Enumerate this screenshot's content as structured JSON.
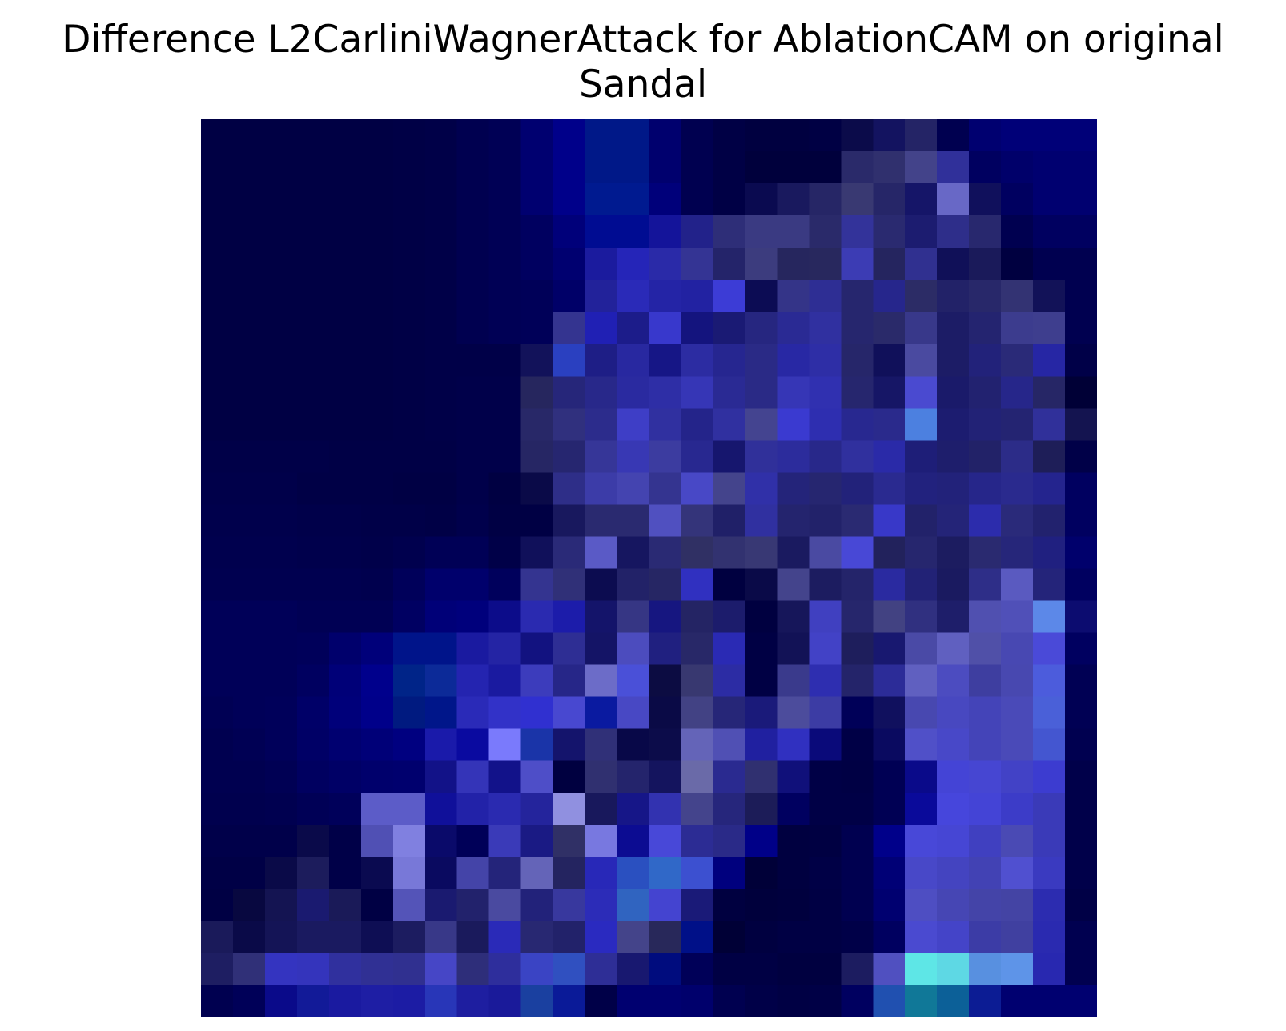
{
  "figure": {
    "title_line1": "Difference L2CarliniWagnerAttack for AblationCAM on original",
    "title_line2": "Sandal"
  },
  "chart_data": {
    "type": "heatmap",
    "axes_visible": false,
    "grid": false,
    "colors": {
      "background": "#ffffff",
      "title": "#000000"
    },
    "rows": 28,
    "cols": 28,
    "matrix": [
      [
        "#000044",
        "#000044",
        "#000044",
        "#000044",
        "#000044",
        "#000044",
        "#000046",
        "#000048",
        "#000050",
        "#000055",
        "#000070",
        "#00008a",
        "#001888",
        "#001888",
        "#00006e",
        "#000050",
        "#000045",
        "#000040",
        "#000040",
        "#000044",
        "#0b0b4a",
        "#131360",
        "#242466",
        "#000050",
        "#000070",
        "#000078",
        "#000078",
        "#000078"
      ],
      [
        "#000044",
        "#000044",
        "#000044",
        "#000044",
        "#000044",
        "#000044",
        "#000046",
        "#000048",
        "#000050",
        "#000055",
        "#000070",
        "#00008a",
        "#001888",
        "#001888",
        "#00006e",
        "#000050",
        "#000045",
        "#00003c",
        "#00003c",
        "#00003c",
        "#2a2a6a",
        "#30306e",
        "#43438a",
        "#30309a",
        "#000060",
        "#00006a",
        "#000070",
        "#000070"
      ],
      [
        "#000044",
        "#000044",
        "#000044",
        "#000044",
        "#000044",
        "#000044",
        "#000046",
        "#000048",
        "#000050",
        "#000055",
        "#000070",
        "#00008a",
        "#001a90",
        "#001a90",
        "#00007a",
        "#000050",
        "#000045",
        "#0a0a50",
        "#19195e",
        "#262666",
        "#393972",
        "#262668",
        "#151568",
        "#6868c6",
        "#10105c",
        "#000060",
        "#000070",
        "#000070"
      ],
      [
        "#000044",
        "#000044",
        "#000044",
        "#000044",
        "#000044",
        "#000044",
        "#000046",
        "#000048",
        "#000050",
        "#000055",
        "#000060",
        "#00007a",
        "#000c92",
        "#000c92",
        "#14149a",
        "#22228a",
        "#2e2e78",
        "#3a3a82",
        "#3a3a82",
        "#2a2a6a",
        "#33339a",
        "#2a2a70",
        "#1c1c70",
        "#2e2e8a",
        "#28286e",
        "#000050",
        "#000060",
        "#000060"
      ],
      [
        "#000044",
        "#000044",
        "#000044",
        "#000044",
        "#000044",
        "#000044",
        "#000046",
        "#000048",
        "#000050",
        "#000055",
        "#000060",
        "#000070",
        "#1b1b9e",
        "#2525b8",
        "#2a2aa8",
        "#343494",
        "#24246a",
        "#3c3c7e",
        "#26265e",
        "#28285e",
        "#3c3cb4",
        "#25255f",
        "#303090",
        "#101058",
        "#1a1a5a",
        "#000040",
        "#000050",
        "#000050"
      ],
      [
        "#000044",
        "#000044",
        "#000044",
        "#000044",
        "#000044",
        "#000044",
        "#000046",
        "#000048",
        "#000050",
        "#000055",
        "#000058",
        "#000068",
        "#22229a",
        "#2a2ab8",
        "#2424a6",
        "#2222a2",
        "#3c3cd6",
        "#0c0c54",
        "#343488",
        "#2e2e94",
        "#26266e",
        "#26268c",
        "#2c2c66",
        "#222268",
        "#28286a",
        "#333373",
        "#121258",
        "#000050"
      ],
      [
        "#000044",
        "#000044",
        "#000044",
        "#000044",
        "#000044",
        "#000044",
        "#000046",
        "#000048",
        "#000050",
        "#000055",
        "#000058",
        "#343490",
        "#2020b4",
        "#1c1c8a",
        "#3838cc",
        "#14147e",
        "#1a1a74",
        "#262680",
        "#2a2a94",
        "#3030a0",
        "#26266e",
        "#2a2a6a",
        "#38388a",
        "#1c1c66",
        "#242470",
        "#3c3c8e",
        "#3e3e8e",
        "#000050"
      ],
      [
        "#000044",
        "#000044",
        "#000044",
        "#000044",
        "#000044",
        "#000044",
        "#000046",
        "#000048",
        "#000048",
        "#000048",
        "#12125a",
        "#2a40c0",
        "#1e1e86",
        "#2828a0",
        "#161686",
        "#2c2ca2",
        "#262690",
        "#2a2a86",
        "#2828a4",
        "#2e2ea6",
        "#26266a",
        "#10105a",
        "#4a4aa0",
        "#1c1c66",
        "#22227a",
        "#2a2a78",
        "#2626a4",
        "#000048"
      ],
      [
        "#000044",
        "#000044",
        "#000044",
        "#000044",
        "#000044",
        "#000044",
        "#000046",
        "#000048",
        "#00004a",
        "#00004a",
        "#26265e",
        "#26267a",
        "#28288a",
        "#2a2aa0",
        "#2e2ea6",
        "#3636b6",
        "#2a2a94",
        "#2a2a86",
        "#3636b6",
        "#3030b0",
        "#26266e",
        "#161666",
        "#4a4ad0",
        "#1a1a6a",
        "#222270",
        "#26268a",
        "#262666",
        "#000036"
      ],
      [
        "#000044",
        "#000044",
        "#000044",
        "#000044",
        "#000044",
        "#000044",
        "#000046",
        "#000048",
        "#00004a",
        "#00004a",
        "#282868",
        "#30307e",
        "#2c2c8c",
        "#3e3ec6",
        "#3030a0",
        "#24248a",
        "#3030a0",
        "#444490",
        "#3a3ad0",
        "#2e2eb0",
        "#282890",
        "#2a2a8c",
        "#4c80e0",
        "#1c1c70",
        "#222276",
        "#242472",
        "#30309a",
        "#141450"
      ],
      [
        "#000048",
        "#000048",
        "#000048",
        "#000048",
        "#000046",
        "#000046",
        "#000046",
        "#000046",
        "#00004a",
        "#00004a",
        "#262664",
        "#262670",
        "#363698",
        "#3838b4",
        "#3c3ca0",
        "#282890",
        "#16166e",
        "#30309a",
        "#2c2c9c",
        "#28288a",
        "#30309e",
        "#2a2aa8",
        "#1e1e78",
        "#1e1e6c",
        "#222268",
        "#2c2c88",
        "#1e1e58",
        "#000048"
      ],
      [
        "#00004a",
        "#00004a",
        "#00004a",
        "#000046",
        "#000046",
        "#000046",
        "#000044",
        "#000044",
        "#00004a",
        "#000042",
        "#0a0a48",
        "#2e2e88",
        "#3c3ca8",
        "#4444b0",
        "#343490",
        "#4848c6",
        "#44448c",
        "#3030a8",
        "#24247a",
        "#262670",
        "#22227a",
        "#2a2a90",
        "#22227e",
        "#22227a",
        "#26268a",
        "#2a2a8e",
        "#24248e",
        "#000060"
      ],
      [
        "#00004c",
        "#00004c",
        "#00004c",
        "#00004a",
        "#00004a",
        "#000048",
        "#000048",
        "#000046",
        "#00004c",
        "#000044",
        "#000044",
        "#18185e",
        "#2a2a70",
        "#2a2a70",
        "#5050c0",
        "#34347a",
        "#202068",
        "#3030a0",
        "#24246e",
        "#22226a",
        "#2a2a72",
        "#3838c8",
        "#22226a",
        "#242478",
        "#2c2cac",
        "#2a2a7a",
        "#22226e",
        "#000060"
      ],
      [
        "#00004e",
        "#00004e",
        "#00004e",
        "#00004c",
        "#00004c",
        "#00004a",
        "#00004e",
        "#000056",
        "#000056",
        "#000048",
        "#10105a",
        "#2a2a78",
        "#5a5ac6",
        "#161660",
        "#2a2a74",
        "#303064",
        "#323270",
        "#383874",
        "#1a1a60",
        "#4a4aa2",
        "#4848d6",
        "#22225c",
        "#26266e",
        "#1c1c60",
        "#2a2a70",
        "#26267a",
        "#202080",
        "#00006c"
      ],
      [
        "#000050",
        "#000050",
        "#000050",
        "#000050",
        "#000050",
        "#00004e",
        "#00005a",
        "#00006c",
        "#00006c",
        "#00005c",
        "#343490",
        "#303078",
        "#0c0c50",
        "#222268",
        "#262664",
        "#3030c0",
        "#000040",
        "#0a0a48",
        "#44448c",
        "#1c1c60",
        "#24246a",
        "#2a2aa0",
        "#222276",
        "#1a1a60",
        "#2e2e88",
        "#5a5ac0",
        "#24247a",
        "#000060"
      ],
      [
        "#000058",
        "#000058",
        "#000058",
        "#000054",
        "#000054",
        "#000054",
        "#000062",
        "#000078",
        "#00007c",
        "#0c0c8a",
        "#2a2ab0",
        "#1c1caa",
        "#14146a",
        "#363684",
        "#161680",
        "#242464",
        "#1c1c6c",
        "#000040",
        "#16165a",
        "#4040c0",
        "#26266c",
        "#424282",
        "#303080",
        "#1e1e6a",
        "#5050b0",
        "#5050b8",
        "#5c88e8",
        "#0c0c70"
      ],
      [
        "#000058",
        "#000058",
        "#000058",
        "#00005a",
        "#00006c",
        "#00007a",
        "#00148a",
        "#00148a",
        "#1a1aa0",
        "#2424a4",
        "#121280",
        "#2e2e94",
        "#141466",
        "#4c4cbe",
        "#202080",
        "#282868",
        "#2a2ab4",
        "#000044",
        "#121256",
        "#4242c6",
        "#1e1e5c",
        "#181870",
        "#4a4aa6",
        "#6060c0",
        "#5050a8",
        "#4848b2",
        "#4a4ad8",
        "#000060"
      ],
      [
        "#000058",
        "#000058",
        "#000058",
        "#000060",
        "#000078",
        "#00008c",
        "#002488",
        "#0c2a98",
        "#2424b0",
        "#1a1aa0",
        "#3c3cbc",
        "#262688",
        "#6c6cc8",
        "#4a50d8",
        "#0c0c42",
        "#383870",
        "#2c2ca4",
        "#000044",
        "#3a3a8c",
        "#2e2eb0",
        "#24246a",
        "#2c2c98",
        "#6060c0",
        "#4c4cc0",
        "#3e3ea0",
        "#4848b0",
        "#4c5cdc",
        "#000054"
      ],
      [
        "#000054",
        "#000058",
        "#00005a",
        "#000068",
        "#00007a",
        "#00008a",
        "#001a80",
        "#00168a",
        "#2a2ab8",
        "#3232c8",
        "#3030d0",
        "#4848d0",
        "#0a1aa0",
        "#4848c4",
        "#0a0a46",
        "#424284",
        "#262678",
        "#1a1a7a",
        "#4c4c9c",
        "#3c3ca4",
        "#000058",
        "#10105e",
        "#4848b0",
        "#4848c0",
        "#4444b8",
        "#4a4ab8",
        "#4a60d8",
        "#000054"
      ],
      [
        "#000050",
        "#000054",
        "#00005a",
        "#000066",
        "#000070",
        "#000078",
        "#000080",
        "#1a1aaa",
        "#0a0aa0",
        "#7a7afc",
        "#1a34a8",
        "#14146c",
        "#303078",
        "#080848",
        "#0c0c4a",
        "#6464b8",
        "#5050b4",
        "#2020a0",
        "#3030c0",
        "#0a0a7a",
        "#000046",
        "#0a0a60",
        "#5050c8",
        "#4848c8",
        "#4444b8",
        "#4a4ab8",
        "#4456d0",
        "#000050"
      ],
      [
        "#000050",
        "#000050",
        "#000054",
        "#000060",
        "#000066",
        "#00006c",
        "#00006e",
        "#121288",
        "#3434b8",
        "#12128a",
        "#4e4ec8",
        "#000040",
        "#303070",
        "#24246c",
        "#14145e",
        "#6a6aa8",
        "#2a2a90",
        "#303070",
        "#10107a",
        "#000046",
        "#000044",
        "#000054",
        "#0a0a8a",
        "#4444d6",
        "#4646d2",
        "#4242c6",
        "#3c3cd0",
        "#00004a"
      ],
      [
        "#00004e",
        "#00004e",
        "#000050",
        "#000056",
        "#00005a",
        "#5c5cc8",
        "#5c5cc8",
        "#10109a",
        "#2222a8",
        "#2a2ab0",
        "#24249c",
        "#9090e0",
        "#18185c",
        "#161688",
        "#3232b0",
        "#44448c",
        "#26267c",
        "#1c1c58",
        "#000060",
        "#000046",
        "#000046",
        "#000054",
        "#0a0a9a",
        "#4646dc",
        "#4444d6",
        "#3c3cc8",
        "#3a3ab8",
        "#00004a"
      ],
      [
        "#00004a",
        "#00004a",
        "#00004a",
        "#0a0a4a",
        "#000048",
        "#5050b4",
        "#8080e0",
        "#0a0a6a",
        "#000058",
        "#3a3ab8",
        "#1a1a84",
        "#303066",
        "#7878e0",
        "#0c0c92",
        "#4848d8",
        "#2c2c94",
        "#2a2a88",
        "#000088",
        "#000040",
        "#000042",
        "#000050",
        "#00008a",
        "#4848d8",
        "#4646d4",
        "#4040c0",
        "#4a4ab4",
        "#3a3ab8",
        "#00004a"
      ],
      [
        "#000046",
        "#000046",
        "#0a0a48",
        "#1c1c5c",
        "#000048",
        "#0a0a50",
        "#7878d8",
        "#0a0a60",
        "#4444a8",
        "#24247a",
        "#6464b8",
        "#242460",
        "#2828b8",
        "#2a50c0",
        "#3068c8",
        "#3c50d0",
        "#00007e",
        "#000038",
        "#000040",
        "#000046",
        "#000050",
        "#000076",
        "#4848c8",
        "#4444c0",
        "#4242b4",
        "#5050d0",
        "#3a3ac0",
        "#00004a"
      ],
      [
        "#000044",
        "#080840",
        "#141452",
        "#1a1a70",
        "#1a1a58",
        "#000044",
        "#5454b8",
        "#1a1a70",
        "#22226c",
        "#4a4aa0",
        "#22227a",
        "#38389e",
        "#2c2cb8",
        "#3064c0",
        "#4444d0",
        "#1a1a78",
        "#000040",
        "#00003c",
        "#00003e",
        "#000044",
        "#000050",
        "#000070",
        "#4e4ec2",
        "#4646b4",
        "#4444a8",
        "#4444a4",
        "#2c2cb0",
        "#000046"
      ],
      [
        "#1a1a5a",
        "#0a0a48",
        "#141456",
        "#1a1a60",
        "#1a1a60",
        "#0e0e54",
        "#1c1c60",
        "#383888",
        "#1a1a5c",
        "#2a2ab8",
        "#282872",
        "#22226a",
        "#2a2ac0",
        "#44448a",
        "#28285a",
        "#001088",
        "#000036",
        "#000040",
        "#000044",
        "#000044",
        "#000048",
        "#000060",
        "#4a4ad0",
        "#4444c8",
        "#3c3ca6",
        "#4040a0",
        "#2a2ab0",
        "#000050"
      ],
      [
        "#1e1e62",
        "#303078",
        "#3434c0",
        "#3434bc",
        "#30309e",
        "#303094",
        "#303090",
        "#4646c6",
        "#2e2e7a",
        "#2e2e9c",
        "#3a44c4",
        "#3050c0",
        "#2e2e96",
        "#181870",
        "#000c7e",
        "#000058",
        "#000044",
        "#000044",
        "#000040",
        "#000040",
        "#1c1c60",
        "#5050c0",
        "#5ee6e6",
        "#5ed8e4",
        "#5890e0",
        "#5e94e8",
        "#2828b0",
        "#000050"
      ],
      [
        "#000050",
        "#000058",
        "#0a0a8a",
        "#121a98",
        "#1a1aa0",
        "#1e1ea4",
        "#1c1ca4",
        "#2836b8",
        "#1e1ea0",
        "#1a1a9a",
        "#1a40a0",
        "#0a1a98",
        "#000048",
        "#000070",
        "#000070",
        "#00006c",
        "#000050",
        "#000048",
        "#000044",
        "#000046",
        "#000060",
        "#2050b0",
        "#107898",
        "#0c6098",
        "#0c1c94",
        "#000070",
        "#000070",
        "#000070"
      ]
    ]
  }
}
